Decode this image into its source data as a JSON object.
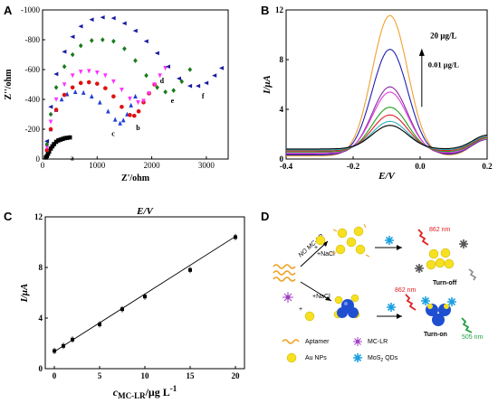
{
  "panels": {
    "A": {
      "letter": "A"
    },
    "B": {
      "letter": "B"
    },
    "C": {
      "letter": "C"
    },
    "D": {
      "letter": "D"
    }
  },
  "chart_data": [
    {
      "panel": "A",
      "type": "scatter",
      "xlabel": "Z'/ohm",
      "ylabel": "Z''/ohm",
      "xlim": [
        0,
        3400
      ],
      "ylim": [
        0,
        -1000
      ],
      "x_ticks": [
        0,
        1000,
        2000,
        3000
      ],
      "y_ticks": [
        0,
        -200,
        -400,
        -600,
        -800,
        -1000
      ],
      "series": [
        {
          "name": "a",
          "color": "#000000",
          "marker": "square",
          "x": [
            60,
            80,
            100,
            120,
            150,
            180,
            210,
            250,
            290,
            330,
            370,
            410,
            450,
            500
          ],
          "y": [
            -10,
            -20,
            -35,
            -50,
            -70,
            -85,
            -100,
            -115,
            -125,
            -130,
            -135,
            -140,
            -142,
            -145
          ]
        },
        {
          "name": "c",
          "color": "#1f3fd8",
          "marker": "triangle-up",
          "x": [
            80,
            150,
            250,
            350,
            450,
            600,
            750,
            900,
            1050,
            1200,
            1330,
            1420,
            1480,
            1550,
            1620,
            1700
          ],
          "y": [
            -60,
            -200,
            -330,
            -400,
            -435,
            -450,
            -445,
            -420,
            -380,
            -320,
            -265,
            -240,
            -260,
            -300,
            -360,
            -420
          ]
        },
        {
          "name": "b",
          "color": "#e01010",
          "marker": "circle",
          "x": [
            80,
            150,
            250,
            400,
            550,
            700,
            850,
            1000,
            1150,
            1300,
            1450,
            1600,
            1680,
            1760,
            1850,
            1950,
            2050
          ],
          "y": [
            -60,
            -200,
            -330,
            -430,
            -480,
            -510,
            -515,
            -505,
            -475,
            -420,
            -350,
            -295,
            -290,
            -320,
            -380,
            -440,
            -500
          ]
        },
        {
          "name": "d",
          "color": "#ff30ff",
          "marker": "triangle-down",
          "x": [
            80,
            150,
            250,
            400,
            550,
            700,
            850,
            1000,
            1150,
            1300,
            1450,
            1600,
            1750,
            1850,
            1950,
            2050,
            2150,
            2250
          ],
          "y": [
            -80,
            -250,
            -400,
            -500,
            -560,
            -585,
            -590,
            -580,
            -560,
            -520,
            -465,
            -405,
            -380,
            -390,
            -440,
            -500,
            -560,
            -610
          ]
        },
        {
          "name": "e",
          "color": "#1a7a1a",
          "marker": "diamond",
          "x": [
            80,
            150,
            250,
            400,
            550,
            700,
            900,
            1100,
            1300,
            1500,
            1700,
            1900,
            2100,
            2250,
            2400,
            2550,
            2700
          ],
          "y": [
            -100,
            -300,
            -480,
            -620,
            -700,
            -760,
            -795,
            -800,
            -790,
            -740,
            -660,
            -560,
            -480,
            -450,
            -460,
            -520,
            -600
          ]
        },
        {
          "name": "f",
          "color": "#1a1aa0",
          "marker": "triangle-left",
          "x": [
            80,
            150,
            250,
            400,
            550,
            700,
            900,
            1100,
            1300,
            1500,
            1700,
            1900,
            2100,
            2300,
            2500,
            2700,
            2850,
            3000,
            3150,
            3280
          ],
          "y": [
            -120,
            -350,
            -570,
            -720,
            -820,
            -890,
            -935,
            -950,
            -945,
            -910,
            -860,
            -790,
            -710,
            -620,
            -540,
            -490,
            -490,
            -510,
            -560,
            -610
          ]
        }
      ]
    },
    {
      "panel": "B",
      "type": "line",
      "xlabel": "E/V",
      "ylabel": "I/μA",
      "xlim": [
        -0.4,
        0.2
      ],
      "ylim": [
        0,
        12
      ],
      "x_ticks": [
        -0.4,
        -0.2,
        0.0,
        0.2
      ],
      "y_ticks": [
        0,
        4,
        8,
        12
      ],
      "annotation_top": "20 μg/L",
      "annotation_bottom": "0.01 μg/L",
      "series": [
        {
          "color": "#f0a030",
          "peak": 11.3
        },
        {
          "color": "#2020b0",
          "peak": 8.5
        },
        {
          "color": "#8a2aa0",
          "peak": 5.4
        },
        {
          "color": "#e040e0",
          "peak": 4.9
        },
        {
          "color": "#20a020",
          "peak": 3.6
        },
        {
          "color": "#e02020",
          "peak": 2.9
        },
        {
          "color": "#30b0c0",
          "peak": 2.3
        },
        {
          "color": "#000000",
          "peak": 1.9
        }
      ]
    },
    {
      "panel": "C",
      "type": "scatter",
      "xlabel": "cMC-LR/μg L-1",
      "ylabel": "I/μA",
      "xlim": [
        -1,
        21
      ],
      "ylim": [
        0,
        12
      ],
      "x_ticks": [
        0,
        5,
        10,
        15,
        20
      ],
      "y_ticks": [
        0,
        4,
        8,
        12
      ],
      "points": {
        "x": [
          0.01,
          1,
          2,
          5,
          7.5,
          10,
          15,
          20
        ],
        "y": [
          1.4,
          1.8,
          2.3,
          3.5,
          4.7,
          5.7,
          7.8,
          10.4
        ]
      },
      "fit": {
        "x": [
          0,
          20
        ],
        "y": [
          1.35,
          10.45
        ]
      }
    }
  ],
  "scheme": {
    "top_arrow": "NO MC-LR",
    "top_salt": "+NaCl",
    "mid_salt": "+NaCl",
    "plus": "+",
    "wavelength_1": "862 nm",
    "wavelength_2": "862 nm",
    "wavelength_3": "505 nm",
    "turn_off": "Turn-off",
    "turn_on": "Turn-on",
    "legend": {
      "aptamer": "Aptamer",
      "mclr": "MC-LR",
      "au": "Au NPs",
      "mos2": "MoS",
      "mos2_sub": "2",
      "mos2_tail": "QDs"
    }
  }
}
